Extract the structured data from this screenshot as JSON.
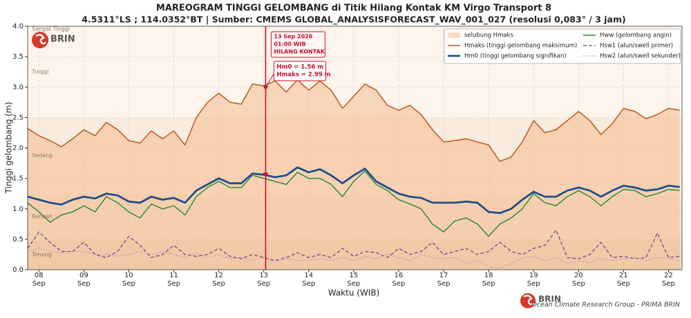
{
  "chart_data": {
    "type": "line",
    "title": "MAREOGRAM TINGGI GELOMBANG di Titik Hilang Kontak KM Virgo Transport 8",
    "subtitle": "4.5311°LS ; 114.0352°BT  |  Sumber: CMEMS GLOBAL_ANALYSISFORECAST_WAV_001_027 (resolusi 0,083° / 3 jam)",
    "xlabel": "Waktu (WIB)",
    "ylabel": "Tinggi gelombang (m)",
    "credit": "Ocean Climate Research Group - PRIMA BRIN",
    "logo_text": "BRIN",
    "xlim": [
      7.75,
      22.3
    ],
    "ylim": [
      0,
      4
    ],
    "grid": true,
    "legend": "upper right",
    "xticks": [
      {
        "value": 8,
        "label": "08 Sep"
      },
      {
        "value": 9,
        "label": "09 Sep"
      },
      {
        "value": 10,
        "label": "10 Sep"
      },
      {
        "value": 11,
        "label": "11 Sep"
      },
      {
        "value": 12,
        "label": "12 Sep"
      },
      {
        "value": 13,
        "label": "13 Sep"
      },
      {
        "value": 14,
        "label": "14 Sep"
      },
      {
        "value": 15,
        "label": "15 Sep"
      },
      {
        "value": 16,
        "label": "16 Sep"
      },
      {
        "value": 17,
        "label": "17 Sep"
      },
      {
        "value": 18,
        "label": "18 Sep"
      },
      {
        "value": 19,
        "label": "19 Sep"
      },
      {
        "value": 20,
        "label": "20 Sep"
      },
      {
        "value": 21,
        "label": "21 Sep"
      },
      {
        "value": 22,
        "label": "22 Sep"
      }
    ],
    "yticks": [
      {
        "value": 0,
        "label": "0.0"
      },
      0.5,
      {
        "value": 1,
        "label": "1.0"
      },
      1.5,
      {
        "value": 2,
        "label": "2.0"
      },
      2.5,
      {
        "value": 3,
        "label": "3.0"
      },
      3.5,
      {
        "value": 4,
        "label": "4.0"
      }
    ],
    "zones": [
      {
        "label": "Tenang",
        "from": 0,
        "to": 0.5,
        "color": "#f1dcc8"
      },
      {
        "label": "Rendah",
        "from": 0.5,
        "to": 1.25,
        "color": "#f6e6d6"
      },
      {
        "label": "Sedang",
        "from": 1.25,
        "to": 2.5,
        "color": "#f9ecdf"
      },
      {
        "label": "Tinggi",
        "from": 2.5,
        "to": 4,
        "color": "#fdf5ec"
      },
      {
        "label": "Sangat Tinggi",
        "from": 4,
        "to": null,
        "color": "#fdf5ec"
      }
    ],
    "envelope": {
      "name": "selubung Hmaks",
      "color": "#f5b27c"
    },
    "x": [
      7.75,
      8,
      8.25,
      8.5,
      8.75,
      9,
      9.25,
      9.5,
      9.75,
      10,
      10.25,
      10.5,
      10.75,
      11,
      11.25,
      11.5,
      11.75,
      12,
      12.25,
      12.5,
      12.75,
      13,
      13.25,
      13.5,
      13.75,
      14,
      14.25,
      14.5,
      14.75,
      15,
      15.25,
      15.5,
      15.75,
      16,
      16.25,
      16.5,
      16.75,
      17,
      17.25,
      17.5,
      17.75,
      18,
      18.25,
      18.5,
      18.75,
      19,
      19.25,
      19.5,
      19.75,
      20,
      20.25,
      20.5,
      20.75,
      21,
      21.25,
      21.5,
      21.75,
      22,
      22.25
    ],
    "series": [
      {
        "name": "Hmaks (tinggi gelombang maksimum)",
        "color": "#c0561c",
        "style": "solid",
        "values": [
          2.32,
          2.2,
          2.12,
          2.02,
          2.15,
          2.3,
          2.2,
          2.42,
          2.3,
          2.12,
          2.08,
          2.28,
          2.15,
          2.28,
          2.05,
          2.5,
          2.75,
          2.9,
          2.75,
          2.72,
          3.05,
          3.02,
          3.1,
          2.92,
          3.12,
          2.95,
          3.1,
          2.95,
          2.65,
          2.85,
          3.05,
          2.95,
          2.7,
          2.62,
          2.7,
          2.55,
          2.3,
          2.1,
          2.12,
          2.15,
          2.1,
          2.05,
          1.78,
          1.85,
          2.1,
          2.45,
          2.25,
          2.3,
          2.45,
          2.6,
          2.45,
          2.22,
          2.4,
          2.65,
          2.6,
          2.48,
          2.55,
          2.65,
          2.62
        ]
      },
      {
        "name": "Hm0 (tinggi gelombang signifikan)",
        "color": "#1f4e8c",
        "style": "thick",
        "values": [
          1.2,
          1.15,
          1.1,
          1.07,
          1.15,
          1.2,
          1.17,
          1.25,
          1.22,
          1.12,
          1.1,
          1.2,
          1.15,
          1.18,
          1.1,
          1.3,
          1.4,
          1.5,
          1.42,
          1.42,
          1.58,
          1.56,
          1.52,
          1.55,
          1.68,
          1.6,
          1.65,
          1.55,
          1.42,
          1.55,
          1.66,
          1.45,
          1.35,
          1.25,
          1.2,
          1.18,
          1.1,
          1.1,
          1.1,
          1.12,
          1.1,
          0.95,
          0.93,
          1.0,
          1.15,
          1.28,
          1.2,
          1.2,
          1.3,
          1.35,
          1.3,
          1.2,
          1.3,
          1.38,
          1.35,
          1.3,
          1.32,
          1.38,
          1.36
        ]
      },
      {
        "name": "Hww (gelombang angin)",
        "color": "#2e8b3a",
        "style": "solid",
        "values": [
          1.1,
          0.95,
          0.78,
          0.9,
          0.95,
          1.05,
          0.95,
          1.2,
          1.1,
          0.95,
          0.85,
          1.08,
          1.0,
          1.05,
          0.9,
          1.2,
          1.35,
          1.45,
          1.35,
          1.35,
          1.55,
          1.5,
          1.45,
          1.4,
          1.6,
          1.5,
          1.5,
          1.4,
          1.2,
          1.45,
          1.62,
          1.4,
          1.3,
          1.15,
          1.08,
          1.0,
          0.75,
          0.62,
          0.8,
          0.85,
          0.75,
          0.55,
          0.75,
          0.85,
          1.0,
          1.25,
          1.1,
          1.05,
          1.2,
          1.3,
          1.2,
          1.05,
          1.2,
          1.32,
          1.3,
          1.2,
          1.25,
          1.32,
          1.3
        ]
      },
      {
        "name": "Hsw1 (alun/swell primer)",
        "color": "#6a4c93",
        "style": "dashed",
        "values": [
          0.35,
          0.62,
          0.45,
          0.3,
          0.3,
          0.45,
          0.25,
          0.2,
          0.3,
          0.55,
          0.4,
          0.2,
          0.25,
          0.4,
          0.25,
          0.22,
          0.25,
          0.35,
          0.22,
          0.18,
          0.25,
          0.2,
          0.15,
          0.2,
          0.28,
          0.2,
          0.25,
          0.2,
          0.35,
          0.22,
          0.3,
          0.28,
          0.2,
          0.35,
          0.25,
          0.3,
          0.45,
          0.25,
          0.3,
          0.35,
          0.25,
          0.3,
          0.45,
          0.3,
          0.25,
          0.35,
          0.4,
          0.65,
          0.2,
          0.18,
          0.25,
          0.45,
          0.2,
          0.22,
          0.18,
          0.2,
          0.6,
          0.2,
          0.22
        ]
      },
      {
        "name": "Hsw2 (alun/swell sekunder)",
        "color": "#a08fb0",
        "style": "dotted",
        "values": [
          0.3,
          0.35,
          0.3,
          0.28,
          0.3,
          0.3,
          0.25,
          0.25,
          0.22,
          0.25,
          0.3,
          0.25,
          0.3,
          0.25,
          0.2,
          0.28,
          0.2,
          0.25,
          0.18,
          0.2,
          0.15,
          0.2,
          0.12,
          0.18,
          0.15,
          0.15,
          0.18,
          0.15,
          0.2,
          0.15,
          0.22,
          0.18,
          0.25,
          0.2,
          0.15,
          0.25,
          0.2,
          0.18,
          0.2,
          0.1,
          0.15,
          0.05,
          0.02,
          0.1,
          0.2,
          0.22,
          0.15,
          0.2,
          0.1,
          0.15,
          0.12,
          0.18,
          0.15,
          0.18,
          0.2,
          0.15,
          0.2,
          0.18,
          0.15
        ]
      }
    ],
    "event": {
      "x": 13.0417,
      "color": "#c8102e",
      "text": [
        "13 Sep 2026",
        "01:00 WIB",
        "HILANG KONTAK"
      ],
      "hm0": 1.56,
      "hmaks": 2.99,
      "labels": [
        "Hm0 = 1.56 m",
        "Hmaks = 2.99 m"
      ]
    }
  }
}
